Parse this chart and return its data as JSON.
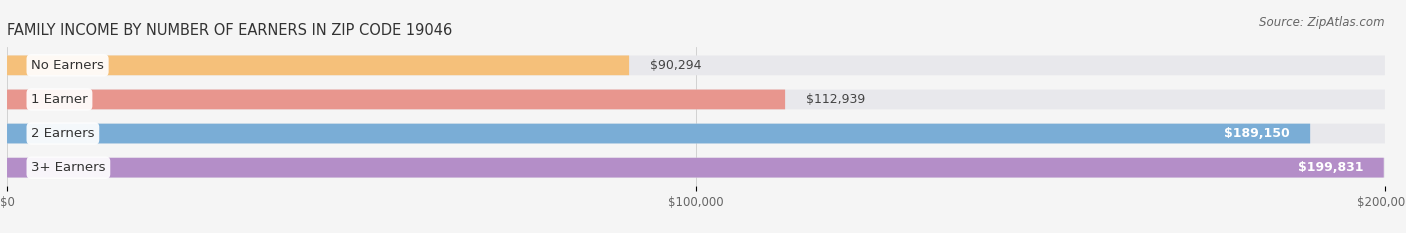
{
  "title": "FAMILY INCOME BY NUMBER OF EARNERS IN ZIP CODE 19046",
  "source": "Source: ZipAtlas.com",
  "categories": [
    "No Earners",
    "1 Earner",
    "2 Earners",
    "3+ Earners"
  ],
  "values": [
    90294,
    112939,
    189150,
    199831
  ],
  "value_labels": [
    "$90,294",
    "$112,939",
    "$189,150",
    "$199,831"
  ],
  "bar_colors": [
    "#f5c07a",
    "#e8968e",
    "#7aadd6",
    "#b48ec8"
  ],
  "bar_bg_color": "#e8e8ec",
  "background_color": "#f5f5f5",
  "xlim": [
    0,
    200000
  ],
  "xticks": [
    0,
    100000,
    200000
  ],
  "xtick_labels": [
    "$0",
    "$100,000",
    "$200,000"
  ],
  "title_fontsize": 10.5,
  "source_fontsize": 8.5,
  "label_fontsize": 9.5,
  "value_fontsize": 9,
  "value_threshold": 0.88
}
